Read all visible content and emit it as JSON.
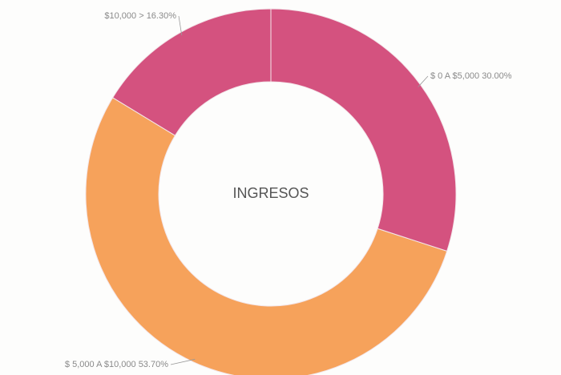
{
  "chart_data": {
    "type": "donut",
    "title": "INGRESOS",
    "categories": [
      "$ 0 A $5,000",
      "$ 5,000 A $10,000",
      "$10,000 >"
    ],
    "values": [
      30.0,
      53.7,
      16.3
    ],
    "value_labels": [
      "30.00%",
      "53.70%",
      "16.30%"
    ],
    "colors": [
      "#d4527f",
      "#f6a25b",
      "#d4527f"
    ]
  }
}
